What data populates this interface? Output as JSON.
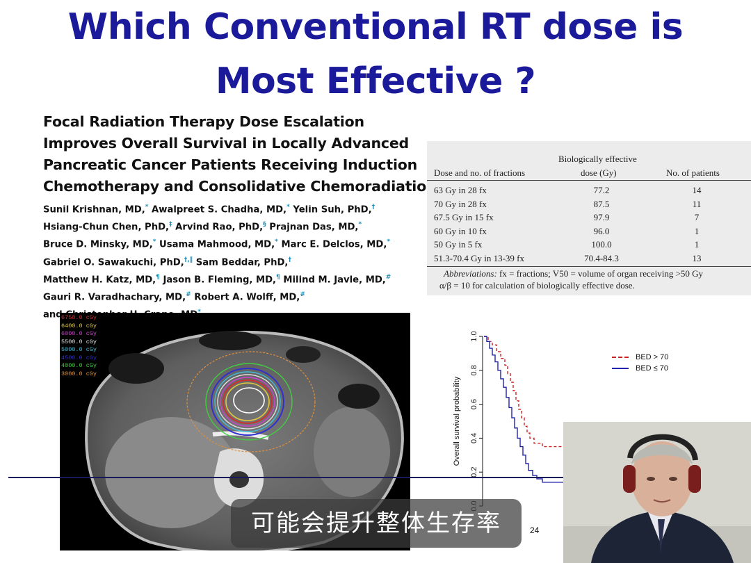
{
  "slide": {
    "title_line1": "Which Conventional RT dose is",
    "title_line2": "Most Effective ?"
  },
  "paper": {
    "title_lines": [
      "Focal Radiation Therapy Dose Escalation",
      "Improves Overall Survival in Locally Advanced",
      "Pancreatic Cancer Patients Receiving Induction",
      "Chemotherapy and Consolidative Chemoradiation"
    ],
    "author_lines": [
      [
        {
          "t": "Sunil Krishnan, MD,",
          "s": "*"
        },
        {
          "t": " Awalpreet S. Chadha, MD,",
          "s": "*"
        },
        {
          "t": " Yelin Suh, PhD,",
          "s": "†"
        }
      ],
      [
        {
          "t": "Hsiang-Chun Chen, PhD,",
          "s": "‡"
        },
        {
          "t": " Arvind Rao, PhD,",
          "s": "§"
        },
        {
          "t": " Prajnan Das, MD,",
          "s": "*"
        }
      ],
      [
        {
          "t": "Bruce D. Minsky, MD,",
          "s": "*"
        },
        {
          "t": " Usama Mahmood, MD,",
          "s": "*"
        },
        {
          "t": " Marc E. Delclos, MD,",
          "s": "*"
        }
      ],
      [
        {
          "t": "Gabriel O. Sawakuchi, PhD,",
          "s": "†,‖"
        },
        {
          "t": " Sam Beddar, PhD,",
          "s": "†"
        }
      ],
      [
        {
          "t": "Matthew H. Katz, MD,",
          "s": "¶"
        },
        {
          "t": " Jason B. Fleming, MD,",
          "s": "¶"
        },
        {
          "t": " Milind M. Javle, MD,",
          "s": "#"
        }
      ],
      [
        {
          "t": "Gauri R. Varadhachary, MD,",
          "s": "#"
        },
        {
          "t": " Robert A. Wolff, MD,",
          "s": "#"
        }
      ],
      [
        {
          "t": "and Christopher H. Crane, MD",
          "s": "*"
        }
      ]
    ]
  },
  "table": {
    "col1": "Dose and no. of fractions",
    "col2_line1": "Biologically effective",
    "col2_line2": "dose (Gy)",
    "col3": "No. of patients",
    "rows": [
      {
        "dose": "63 Gy in 28 fx",
        "bed": "77.2",
        "n": "14"
      },
      {
        "dose": "70 Gy in 28 fx",
        "bed": "87.5",
        "n": "11"
      },
      {
        "dose": "67.5 Gy in 15 fx",
        "bed": "97.9",
        "n": "7"
      },
      {
        "dose": "60 Gy in 10 fx",
        "bed": "96.0",
        "n": "1"
      },
      {
        "dose": "50 Gy in 5 fx",
        "bed": "100.0",
        "n": "1"
      },
      {
        "dose": "51.3-70.4 Gy in 13-39 fx",
        "bed": "70.4-84.3",
        "n": "13"
      }
    ],
    "footnote_line1": "Abbreviations: fx = fractions; V50 = volume of organ receiving >50 Gy",
    "footnote_line2": "α/β = 10 for calculation of biologically effective dose."
  },
  "ct": {
    "legend": [
      {
        "label": "6750.0 cGy",
        "color": "#d03030"
      },
      {
        "label": "6400.0 cGy",
        "color": "#e0c840"
      },
      {
        "label": "6000.0 cGy",
        "color": "#d040d0"
      },
      {
        "label": "5500.0 cGy",
        "color": "#e0e0e0"
      },
      {
        "label": "5000.0 cGy",
        "color": "#40c0e0"
      },
      {
        "label": "4500.0 cGy",
        "color": "#3030d0"
      },
      {
        "label": "4000.0 cGy",
        "color": "#40d040"
      },
      {
        "label": "3000.0 cGy",
        "color": "#e0903a"
      }
    ]
  },
  "km": {
    "ylabel": "Overall survival probability",
    "yticks": [
      "0.0",
      "0.2",
      "0.4",
      "0.6",
      "0.8",
      "1.0"
    ],
    "xtick_visible": "24",
    "legend": [
      {
        "label": "BED > 70",
        "color": "#cc2222",
        "style": "dashed"
      },
      {
        "label": "BED ≤ 70",
        "color": "#2222aa",
        "style": "solid"
      }
    ]
  },
  "subtitle": "可能会提升整体生存率"
}
